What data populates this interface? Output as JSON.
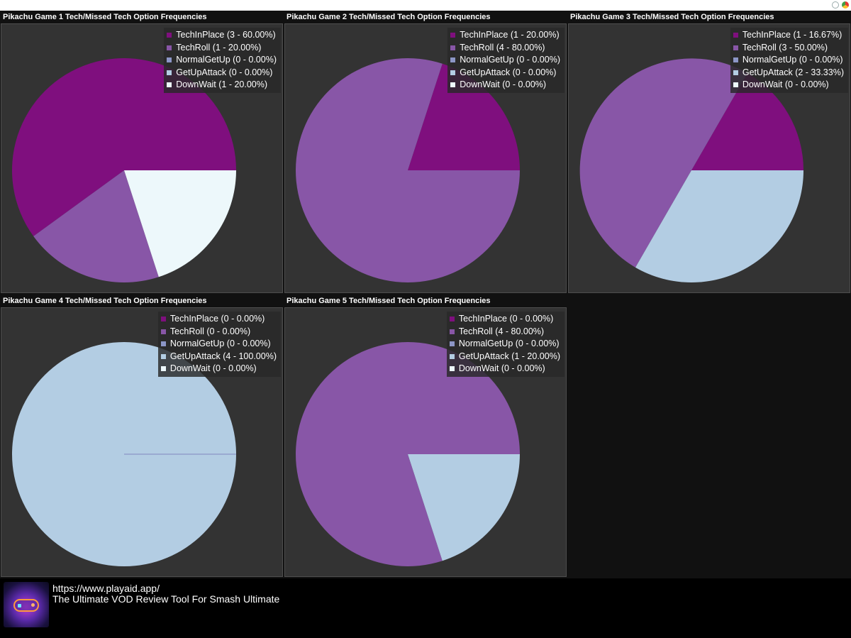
{
  "colors": {
    "TechInPlace": "#7f0f7e",
    "TechRoll": "#8856a7",
    "NormalGetUp": "#8c96c6",
    "GetUpAttack": "#b3cde3",
    "DownWait": "#edf8fb"
  },
  "footer": {
    "url": "https://www.playaid.app/",
    "tagline": "The Ultimate VOD Review Tool For Smash Ultimate",
    "logo_icon": "gamepad-logo-icon"
  },
  "chart_data": [
    {
      "type": "pie",
      "title": "Pikachu Game 1 Tech/Missed Tech Option Frequencies",
      "legend_position": "top-right",
      "slices": [
        {
          "label": "TechInPlace",
          "value": 3,
          "legend": "TechInPlace (3 - 60.00%)"
        },
        {
          "label": "TechRoll",
          "value": 1,
          "legend": "TechRoll (1 - 20.00%)"
        },
        {
          "label": "NormalGetUp",
          "value": 0,
          "legend": "NormalGetUp (0 - 0.00%)"
        },
        {
          "label": "GetUpAttack",
          "value": 0,
          "legend": "GetUpAttack (0 - 0.00%)"
        },
        {
          "label": "DownWait",
          "value": 1,
          "legend": "DownWait (1 - 20.00%)"
        }
      ]
    },
    {
      "type": "pie",
      "title": "Pikachu Game 2 Tech/Missed Tech Option Frequencies",
      "legend_position": "top-right",
      "slices": [
        {
          "label": "TechInPlace",
          "value": 1,
          "legend": "TechInPlace (1 - 20.00%)"
        },
        {
          "label": "TechRoll",
          "value": 4,
          "legend": "TechRoll (4 - 80.00%)"
        },
        {
          "label": "NormalGetUp",
          "value": 0,
          "legend": "NormalGetUp (0 - 0.00%)"
        },
        {
          "label": "GetUpAttack",
          "value": 0,
          "legend": "GetUpAttack (0 - 0.00%)"
        },
        {
          "label": "DownWait",
          "value": 0,
          "legend": "DownWait (0 - 0.00%)"
        }
      ]
    },
    {
      "type": "pie",
      "title": "Pikachu Game 3 Tech/Missed Tech Option Frequencies",
      "legend_position": "top-right",
      "slices": [
        {
          "label": "TechInPlace",
          "value": 1,
          "legend": "TechInPlace (1 - 16.67%)"
        },
        {
          "label": "TechRoll",
          "value": 3,
          "legend": "TechRoll (3 - 50.00%)"
        },
        {
          "label": "NormalGetUp",
          "value": 0,
          "legend": "NormalGetUp (0 - 0.00%)"
        },
        {
          "label": "GetUpAttack",
          "value": 2,
          "legend": "GetUpAttack (2 - 33.33%)"
        },
        {
          "label": "DownWait",
          "value": 0,
          "legend": "DownWait (0 - 0.00%)"
        }
      ]
    },
    {
      "type": "pie",
      "title": "Pikachu Game 4 Tech/Missed Tech Option Frequencies",
      "legend_position": "top-right",
      "slices": [
        {
          "label": "TechInPlace",
          "value": 0,
          "legend": "TechInPlace (0 - 0.00%)"
        },
        {
          "label": "TechRoll",
          "value": 0,
          "legend": "TechRoll (0 - 0.00%)"
        },
        {
          "label": "NormalGetUp",
          "value": 0,
          "legend": "NormalGetUp (0 - 0.00%)"
        },
        {
          "label": "GetUpAttack",
          "value": 4,
          "legend": "GetUpAttack (4 - 100.00%)"
        },
        {
          "label": "DownWait",
          "value": 0,
          "legend": "DownWait (0 - 0.00%)"
        }
      ]
    },
    {
      "type": "pie",
      "title": "Pikachu Game 5 Tech/Missed Tech Option Frequencies",
      "legend_position": "top-right",
      "slices": [
        {
          "label": "TechInPlace",
          "value": 0,
          "legend": "TechInPlace (0 - 0.00%)"
        },
        {
          "label": "TechRoll",
          "value": 4,
          "legend": "TechRoll (4 - 80.00%)"
        },
        {
          "label": "NormalGetUp",
          "value": 0,
          "legend": "NormalGetUp (0 - 0.00%)"
        },
        {
          "label": "GetUpAttack",
          "value": 1,
          "legend": "GetUpAttack (1 - 20.00%)"
        },
        {
          "label": "DownWait",
          "value": 0,
          "legend": "DownWait (0 - 0.00%)"
        }
      ]
    }
  ]
}
